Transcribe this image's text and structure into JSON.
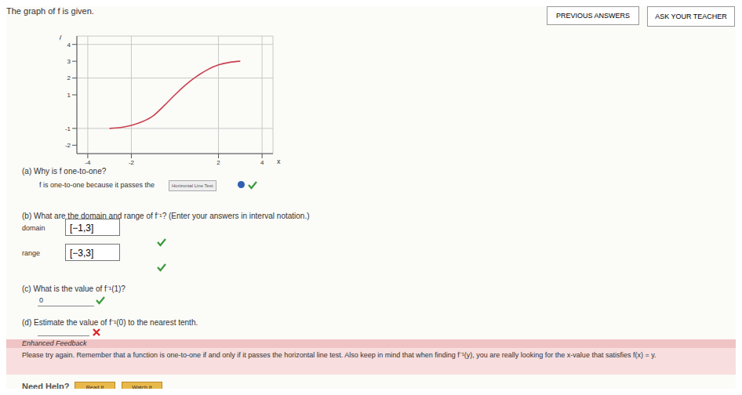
{
  "header": {
    "prompt": "The graph of f is given.",
    "buttons": [
      "PREVIOUS ANSWERS",
      "ASK YOUR TEACHER"
    ]
  },
  "chart_data": {
    "type": "line",
    "x_label": "x",
    "y_label": "y",
    "x": [
      -3,
      -2.5,
      -2,
      -1.5,
      -1,
      -0.5,
      0,
      0.5,
      1,
      1.5,
      2,
      2.5,
      3
    ],
    "values": [
      -1,
      -0.95,
      -0.82,
      -0.6,
      -0.25,
      0.35,
      1,
      1.6,
      2.1,
      2.5,
      2.78,
      2.93,
      3
    ],
    "color": "#c9404f",
    "xlim": [
      -4.5,
      4.5
    ],
    "ylim": [
      -2.5,
      4.5
    ],
    "xticks": [
      -4,
      -2,
      2,
      4
    ],
    "yticks": [
      -2,
      -1,
      1,
      2,
      3,
      4
    ],
    "grid": true
  },
  "questions": [
    {
      "question": "(a) Why is f one-to-one?",
      "answer_prefix": "f is one-to-one because it passes the",
      "answer": "Horizontal Line Test",
      "correct": true
    },
    {
      "question": "(b) What are the domain and range of f⁻¹? (Enter your answers in interval notation.)",
      "fields": [
        {
          "label": "domain",
          "answer": "[−1,3]",
          "correct": true
        },
        {
          "label": "range",
          "answer": "[−3,3]",
          "correct": true
        }
      ]
    },
    {
      "question": "(c) What is the value of f⁻¹(1)?",
      "answer": "0",
      "correct": true
    },
    {
      "question": "(d) Estimate the value of f⁻¹(0) to the nearest tenth.",
      "answer": null,
      "correct": false
    }
  ],
  "feedback": {
    "title": "Enhanced Feedback",
    "text": "Please try again. Remember that a function is one-to-one if and only if it passes the horizontal line test. Also keep in mind that when finding f⁻¹(y), you are really looking for the x-value that satisfies f(x) = y."
  },
  "help": {
    "label": "Need Help?",
    "buttons": [
      "Read It",
      "Watch It"
    ]
  }
}
